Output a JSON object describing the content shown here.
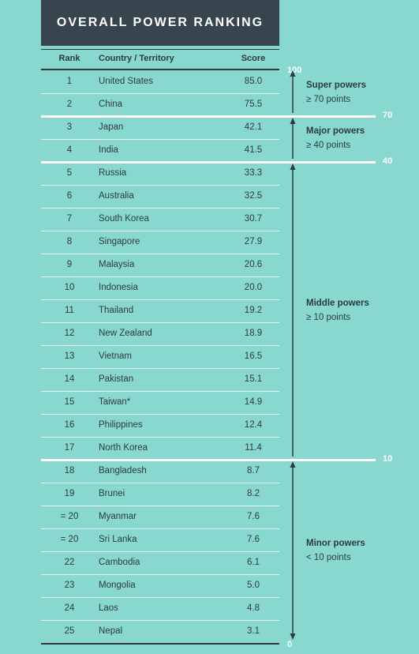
{
  "title": "OVERALL POWER RANKING",
  "columns": {
    "rank": "Rank",
    "country": "Country / Territory",
    "score": "Score"
  },
  "axis": {
    "top": "100",
    "bottom": "0"
  },
  "thresholds": [
    {
      "value": 70,
      "label": "70",
      "after_row": 2
    },
    {
      "value": 40,
      "label": "40",
      "after_row": 4
    },
    {
      "value": 10,
      "label": "10",
      "after_row": 17
    }
  ],
  "categories": [
    {
      "name": "Super powers",
      "desc": "≥ 70 points",
      "from_row": 1,
      "to_row": 2
    },
    {
      "name": "Major powers",
      "desc": "≥ 40 points",
      "from_row": 3,
      "to_row": 4
    },
    {
      "name": "Middle powers",
      "desc": "≥ 10 points",
      "from_row": 5,
      "to_row": 17
    },
    {
      "name": "Minor powers",
      "desc": "< 10 points",
      "from_row": 18,
      "to_row": 25
    }
  ],
  "chart_data": {
    "type": "table",
    "title": "OVERALL POWER RANKING",
    "columns": [
      "Rank",
      "Country / Territory",
      "Score"
    ],
    "rows": [
      {
        "rank": "1",
        "country": "United States",
        "score": "85.0"
      },
      {
        "rank": "2",
        "country": "China",
        "score": "75.5"
      },
      {
        "rank": "3",
        "country": "Japan",
        "score": "42.1"
      },
      {
        "rank": "4",
        "country": "India",
        "score": "41.5"
      },
      {
        "rank": "5",
        "country": "Russia",
        "score": "33.3"
      },
      {
        "rank": "6",
        "country": "Australia",
        "score": "32.5"
      },
      {
        "rank": "7",
        "country": "South Korea",
        "score": "30.7"
      },
      {
        "rank": "8",
        "country": "Singapore",
        "score": "27.9"
      },
      {
        "rank": "9",
        "country": "Malaysia",
        "score": "20.6"
      },
      {
        "rank": "10",
        "country": "Indonesia",
        "score": "20.0"
      },
      {
        "rank": "11",
        "country": "Thailand",
        "score": "19.2"
      },
      {
        "rank": "12",
        "country": "New Zealand",
        "score": "18.9"
      },
      {
        "rank": "13",
        "country": "Vietnam",
        "score": "16.5"
      },
      {
        "rank": "14",
        "country": "Pakistan",
        "score": "15.1"
      },
      {
        "rank": "15",
        "country": "Taiwan*",
        "score": "14.9"
      },
      {
        "rank": "16",
        "country": "Philippines",
        "score": "12.4"
      },
      {
        "rank": "17",
        "country": "North Korea",
        "score": "11.4"
      },
      {
        "rank": "18",
        "country": "Bangladesh",
        "score": "8.7"
      },
      {
        "rank": "19",
        "country": "Brunei",
        "score": "8.2"
      },
      {
        "rank": "= 20",
        "country": "Myanmar",
        "score": "7.6"
      },
      {
        "rank": "= 20",
        "country": "Sri Lanka",
        "score": "7.6"
      },
      {
        "rank": "22",
        "country": "Cambodia",
        "score": "6.1"
      },
      {
        "rank": "23",
        "country": "Mongolia",
        "score": "5.0"
      },
      {
        "rank": "24",
        "country": "Laos",
        "score": "4.8"
      },
      {
        "rank": "25",
        "country": "Nepal",
        "score": "3.1"
      }
    ]
  }
}
